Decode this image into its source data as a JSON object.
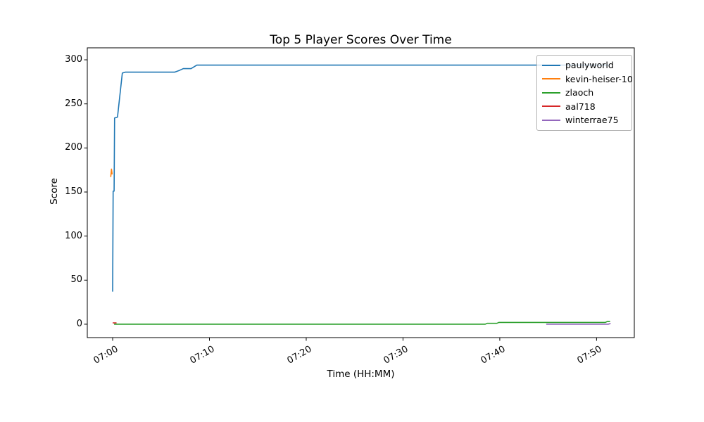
{
  "chart_data": {
    "type": "line",
    "title": "Top 5 Player Scores Over Time",
    "xlabel": "Time (HH:MM)",
    "ylabel": "Score",
    "grid": false,
    "legend_position": "upper right",
    "x_unit": "minutes after 07:00",
    "xlim": [
      -2.62,
      53.9
    ],
    "ylim": [
      -15.2,
      313.6
    ],
    "x_ticks": [
      {
        "t": 0,
        "label": "07:00"
      },
      {
        "t": 10,
        "label": "07:10"
      },
      {
        "t": 20,
        "label": "07:20"
      },
      {
        "t": 30,
        "label": "07:30"
      },
      {
        "t": 40,
        "label": "07:40"
      },
      {
        "t": 50,
        "label": "07:50"
      }
    ],
    "y_ticks": [
      0,
      50,
      100,
      150,
      200,
      250,
      300
    ],
    "series": [
      {
        "name": "paulyworld",
        "color": "#1f77b4",
        "points": [
          [
            0,
            37
          ],
          [
            0.05,
            151
          ],
          [
            0.15,
            151
          ],
          [
            0.2,
            234
          ],
          [
            0.5,
            235
          ],
          [
            1.0,
            285
          ],
          [
            1.3,
            286
          ],
          [
            6.4,
            286
          ],
          [
            6.9,
            288
          ],
          [
            7.3,
            290
          ],
          [
            8.1,
            290
          ],
          [
            8.7,
            294
          ],
          [
            51.3,
            294
          ]
        ]
      },
      {
        "name": "kevin-heiser-10",
        "color": "#ff7f0e",
        "points": [
          [
            -0.2,
            167
          ],
          [
            -0.12,
            176
          ],
          [
            -0.05,
            170
          ]
        ]
      },
      {
        "name": "zlaoch",
        "color": "#2ca02c",
        "points": [
          [
            0.15,
            0
          ],
          [
            38.5,
            0
          ],
          [
            38.7,
            1
          ],
          [
            39.7,
            1
          ],
          [
            39.9,
            2
          ],
          [
            50.9,
            2
          ],
          [
            51.1,
            3
          ],
          [
            51.4,
            3
          ]
        ]
      },
      {
        "name": "aal718",
        "color": "#d62728",
        "points": [
          [
            0,
            1.5
          ],
          [
            0.4,
            1.5
          ]
        ]
      },
      {
        "name": "winterrae75",
        "color": "#9467bd",
        "points": [
          [
            44.8,
            0
          ],
          [
            51.2,
            0
          ],
          [
            51.45,
            0.8
          ]
        ]
      }
    ]
  }
}
